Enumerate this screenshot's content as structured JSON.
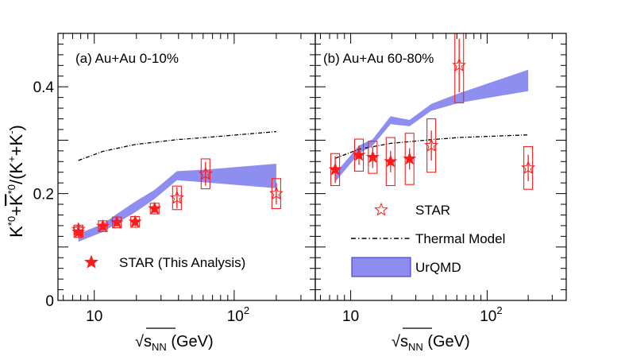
{
  "chart_data": [
    {
      "type": "scatter",
      "label": "(a) Au+Au 0-10%",
      "x_scale": "log",
      "xlim": [
        5.5,
        380
      ],
      "ylim": [
        0,
        0.5
      ],
      "x_ticks": [
        {
          "value": 10,
          "label": "10"
        },
        {
          "value": 100,
          "label": "10",
          "exp": "2"
        }
      ],
      "y_ticks": [
        {
          "value": 0,
          "label": "0"
        },
        {
          "value": 0.2,
          "label": "0.2"
        },
        {
          "value": 0.4,
          "label": "0.4"
        }
      ],
      "series": [
        {
          "name": "STAR (This Analysis)",
          "style": "filled-star",
          "color": "#ff1a1a",
          "points": [
            {
              "x": 7.7,
              "y": 0.128,
              "stat": 0.01,
              "sys": 0.01
            },
            {
              "x": 11.5,
              "y": 0.139,
              "stat": 0.008,
              "sys": 0.01
            },
            {
              "x": 14.5,
              "y": 0.146,
              "stat": 0.008,
              "sys": 0.01
            },
            {
              "x": 19.6,
              "y": 0.147,
              "stat": 0.008,
              "sys": 0.01
            },
            {
              "x": 27,
              "y": 0.172,
              "stat": 0.008,
              "sys": 0.01
            }
          ]
        },
        {
          "name": "STAR",
          "style": "open-star",
          "color": "#ff1a1a",
          "points": [
            {
              "x": 7.7,
              "y": 0.133,
              "stat": 0.01,
              "sys": 0.008
            },
            {
              "x": 39,
              "y": 0.192,
              "stat": 0.02,
              "sys": 0.022
            },
            {
              "x": 62.4,
              "y": 0.237,
              "stat": 0.022,
              "sys": 0.028
            },
            {
              "x": 200,
              "y": 0.2,
              "stat": 0.02,
              "sys": 0.028
            }
          ]
        },
        {
          "name": "Thermal Model",
          "style": "dash-dot",
          "color": "#000000",
          "points": [
            {
              "x": 7.7,
              "y": 0.262
            },
            {
              "x": 11.5,
              "y": 0.279
            },
            {
              "x": 19.6,
              "y": 0.292
            },
            {
              "x": 39,
              "y": 0.301
            },
            {
              "x": 62.4,
              "y": 0.305
            },
            {
              "x": 200,
              "y": 0.316
            }
          ]
        },
        {
          "name": "UrQMD",
          "style": "band",
          "color": "#8e8ef0",
          "points": [
            {
              "x": 7.7,
              "lo": 0.11,
              "hi": 0.125
            },
            {
              "x": 11.5,
              "lo": 0.128,
              "hi": 0.143
            },
            {
              "x": 14.5,
              "lo": 0.145,
              "hi": 0.162
            },
            {
              "x": 19.6,
              "lo": 0.165,
              "hi": 0.185
            },
            {
              "x": 27,
              "lo": 0.19,
              "hi": 0.207
            },
            {
              "x": 39,
              "lo": 0.225,
              "hi": 0.242
            },
            {
              "x": 62.4,
              "lo": 0.221,
              "hi": 0.245
            },
            {
              "x": 200,
              "lo": 0.21,
              "hi": 0.256
            }
          ]
        }
      ],
      "legend": {
        "placement": "bottom-right",
        "entries": [
          {
            "series": "STAR (This Analysis)",
            "style": "filled-star",
            "label": "STAR (This Analysis)"
          }
        ]
      }
    },
    {
      "type": "scatter",
      "label": "(b) Au+Au 60-80%",
      "x_scale": "log",
      "xlim": [
        5.5,
        380
      ],
      "ylim": [
        0,
        0.5
      ],
      "x_ticks": [
        {
          "value": 10,
          "label": "10"
        },
        {
          "value": 100,
          "label": "10",
          "exp": "2"
        }
      ],
      "series": [
        {
          "name": "STAR (This Analysis)",
          "style": "filled-star",
          "color": "#ff1a1a",
          "points": [
            {
              "x": 7.7,
              "y": 0.245,
              "stat": 0.025,
              "sys": 0.03
            },
            {
              "x": 11.5,
              "y": 0.272,
              "stat": 0.018,
              "sys": 0.03
            },
            {
              "x": 14.5,
              "y": 0.268,
              "stat": 0.02,
              "sys": 0.03
            },
            {
              "x": 19.6,
              "y": 0.26,
              "stat": 0.02,
              "sys": 0.045
            },
            {
              "x": 27,
              "y": 0.265,
              "stat": 0.02,
              "sys": 0.048
            }
          ]
        },
        {
          "name": "STAR",
          "style": "open-star",
          "color": "#ff1a1a",
          "points": [
            {
              "x": 39,
              "y": 0.29,
              "stat": 0.028,
              "sys": 0.05
            },
            {
              "x": 62.4,
              "y": 0.44,
              "stat": 0.05,
              "sys": 0.07
            },
            {
              "x": 200,
              "y": 0.248,
              "stat": 0.025,
              "sys": 0.04
            }
          ]
        },
        {
          "name": "Thermal Model",
          "style": "dash-dot",
          "color": "#000000",
          "points": [
            {
              "x": 7.7,
              "y": 0.266
            },
            {
              "x": 11.5,
              "y": 0.283
            },
            {
              "x": 19.6,
              "y": 0.294
            },
            {
              "x": 39,
              "y": 0.301
            },
            {
              "x": 62.4,
              "y": 0.305
            },
            {
              "x": 200,
              "y": 0.31
            }
          ]
        },
        {
          "name": "UrQMD",
          "style": "band",
          "color": "#8e8ef0",
          "points": [
            {
              "x": 7.7,
              "lo": 0.222,
              "hi": 0.238
            },
            {
              "x": 11.5,
              "lo": 0.275,
              "hi": 0.29
            },
            {
              "x": 14.5,
              "lo": 0.29,
              "hi": 0.302
            },
            {
              "x": 19.6,
              "lo": 0.33,
              "hi": 0.345
            },
            {
              "x": 27,
              "lo": 0.326,
              "hi": 0.338
            },
            {
              "x": 39,
              "lo": 0.355,
              "hi": 0.368
            },
            {
              "x": 62.4,
              "lo": 0.37,
              "hi": 0.388
            },
            {
              "x": 200,
              "lo": 0.392,
              "hi": 0.432
            }
          ]
        }
      ],
      "legend": {
        "placement": "bottom-right",
        "entries": [
          {
            "series": "STAR",
            "style": "open-star",
            "label": "STAR"
          },
          {
            "series": "Thermal Model",
            "style": "dash-dot",
            "label": "Thermal Model"
          },
          {
            "series": "UrQMD",
            "style": "band",
            "label": "UrQMD"
          }
        ]
      }
    }
  ],
  "axes": {
    "ylabel": {
      "main": "K",
      "sup1": "*0",
      "plus": "+",
      "kbar": "K",
      "sup2": "*0",
      "ratio": "/(K",
      "sup3": "+",
      "plus2": "+K",
      "sup4": "-",
      "close": ")"
    },
    "xlabel": {
      "sqrt": "√",
      "s": "s",
      "sub": "NN",
      "unit": " (GeV)"
    }
  }
}
